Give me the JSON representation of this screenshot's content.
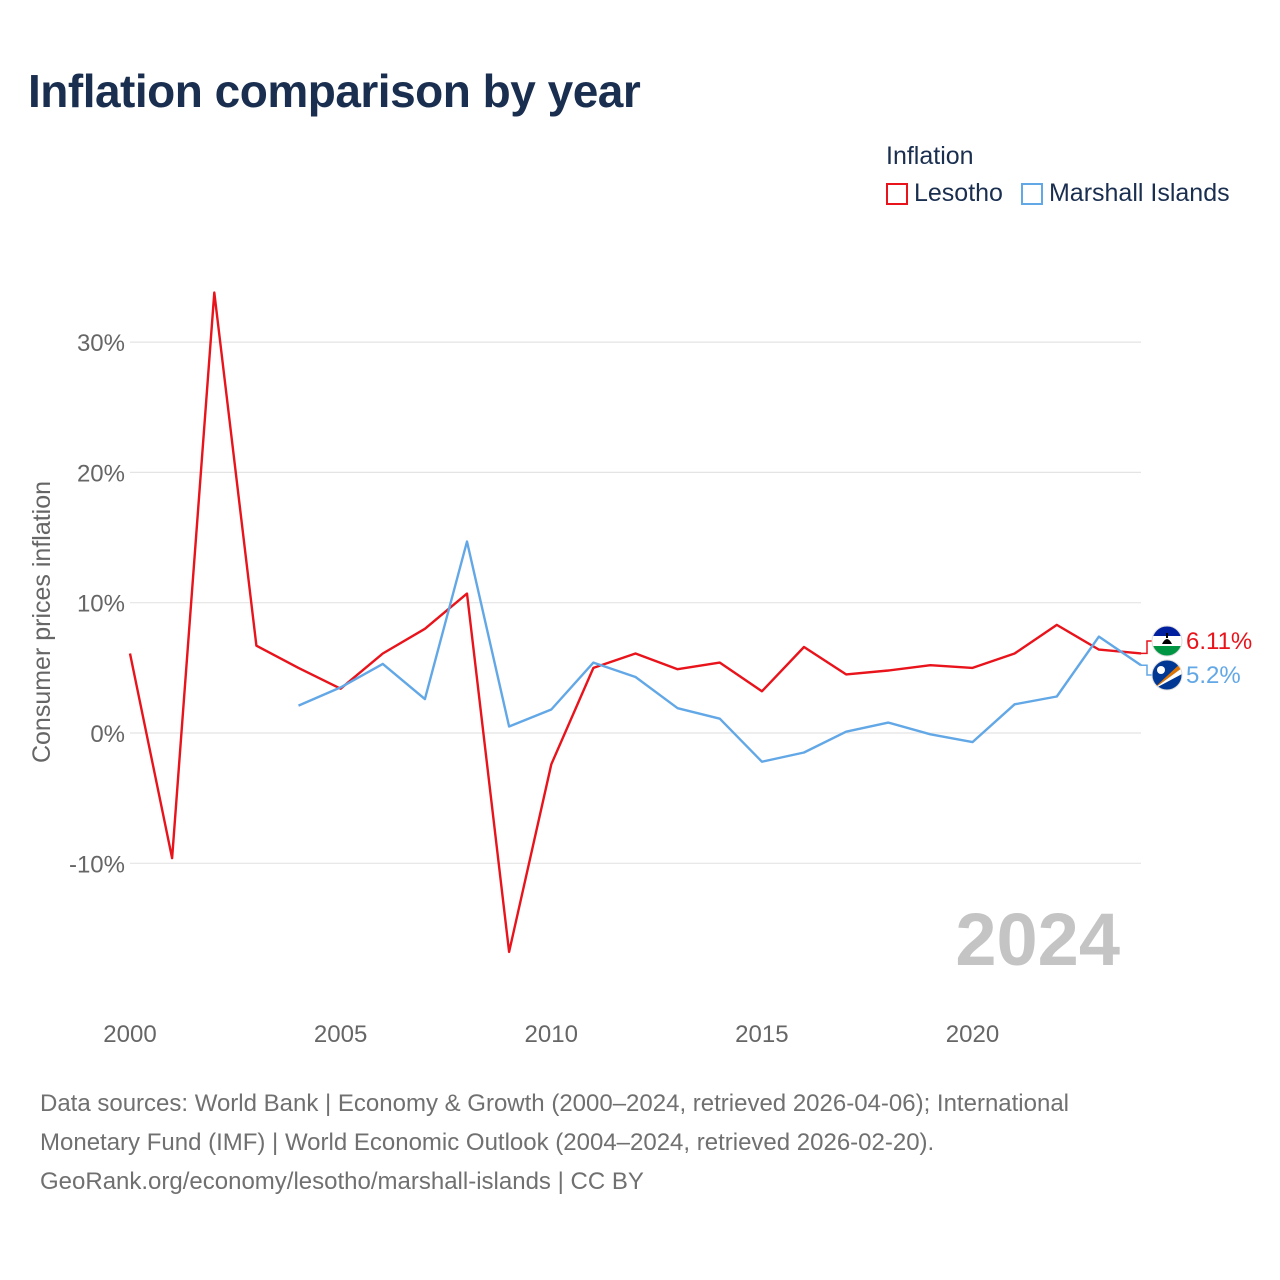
{
  "title": "Inflation comparison by year",
  "legend": {
    "title": "Inflation",
    "items": [
      {
        "label": "Lesotho",
        "color": "#e8131b"
      },
      {
        "label": "Marshall Islands",
        "color": "#62a7e6"
      }
    ]
  },
  "footer": {
    "line1": "Data sources: World Bank | Economy & Growth (2000–2024, retrieved 2026-04-06); International",
    "line2": "Monetary Fund (IMF) | World Economic Outlook (2004–2024, retrieved 2026-02-20).",
    "line3": "GeoRank.org/economy/lesotho/marshall-islands | CC BY"
  },
  "chart_data": {
    "type": "line",
    "title": "Inflation comparison by year",
    "xlabel": "",
    "ylabel": "Consumer prices inflation",
    "xlim": [
      2000,
      2024
    ],
    "ylim": [
      -20,
      35
    ],
    "x_ticks": [
      2000,
      2005,
      2010,
      2015,
      2020
    ],
    "x_tick_labels": [
      "2000",
      "2005",
      "2010",
      "2015",
      "2020"
    ],
    "y_ticks": [
      30,
      20,
      10,
      0,
      -10
    ],
    "y_tick_labels": [
      "30%",
      "20%",
      "10%",
      "0%",
      "-10%"
    ],
    "grid": true,
    "watermark_year": "2024",
    "series": [
      {
        "name": "Lesotho",
        "color": "#e8131b",
        "end_label": "6.11%",
        "flag": "lesotho",
        "x": [
          2000,
          2001,
          2002,
          2003,
          2004,
          2005,
          2006,
          2007,
          2008,
          2009,
          2010,
          2011,
          2012,
          2013,
          2014,
          2015,
          2016,
          2017,
          2018,
          2019,
          2020,
          2021,
          2022,
          2023,
          2024
        ],
        "values": [
          6.1,
          -9.6,
          33.8,
          6.7,
          5.0,
          3.4,
          6.1,
          8.0,
          10.7,
          -16.8,
          -2.4,
          5.0,
          6.1,
          4.9,
          5.4,
          3.2,
          6.6,
          4.5,
          4.8,
          5.2,
          5.0,
          6.1,
          8.3,
          6.4,
          6.11
        ]
      },
      {
        "name": "Marshall Islands",
        "color": "#62a7e6",
        "end_label": "5.2%",
        "flag": "marshall-islands",
        "x": [
          2004,
          2005,
          2006,
          2007,
          2008,
          2009,
          2010,
          2011,
          2012,
          2013,
          2014,
          2015,
          2016,
          2017,
          2018,
          2019,
          2020,
          2021,
          2022,
          2023,
          2024
        ],
        "values": [
          2.1,
          3.5,
          5.3,
          2.6,
          14.7,
          0.5,
          1.8,
          5.4,
          4.3,
          1.9,
          1.1,
          -2.2,
          -1.5,
          0.1,
          0.8,
          -0.1,
          -0.7,
          2.2,
          2.8,
          7.4,
          5.2
        ]
      }
    ]
  }
}
